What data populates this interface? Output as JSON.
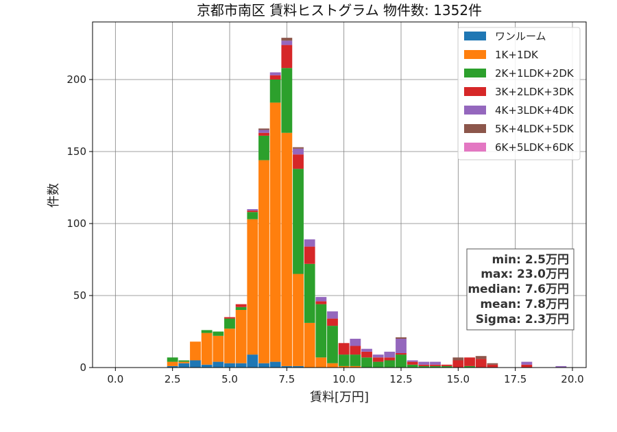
{
  "chart_data": {
    "type": "bar",
    "stacked": true,
    "title": "京都市南区 賃料ヒストグラム 物件数: 1352件",
    "xlabel": "賃料[万円]",
    "ylabel": "件数",
    "xlim": [
      -1.0,
      20.6
    ],
    "ylim": [
      0,
      240
    ],
    "xticks": [
      0.0,
      2.5,
      5.0,
      7.5,
      10.0,
      12.5,
      15.0,
      17.5,
      20.0
    ],
    "xtick_labels": [
      "0.0",
      "2.5",
      "5.0",
      "7.5",
      "10.0",
      "12.5",
      "15.0",
      "17.5",
      "20.0"
    ],
    "yticks": [
      0,
      50,
      100,
      150,
      200
    ],
    "ytick_labels": [
      "0",
      "50",
      "100",
      "150",
      "200"
    ],
    "grid": true,
    "legend_position": "top-right",
    "bin_width": 0.5,
    "x": [
      2.5,
      3.0,
      3.5,
      4.0,
      4.5,
      5.0,
      5.5,
      6.0,
      6.5,
      7.0,
      7.5,
      8.0,
      8.5,
      9.0,
      9.5,
      10.0,
      10.5,
      11.0,
      11.5,
      12.0,
      12.5,
      13.0,
      13.5,
      14.0,
      14.5,
      15.0,
      15.5,
      16.0,
      16.5,
      17.0,
      17.5,
      18.0,
      18.5,
      19.0,
      19.5
    ],
    "series": [
      {
        "name": "ワンルーム",
        "color": "#1f77b4",
        "values": [
          1,
          3,
          5,
          2,
          4,
          3,
          3,
          9,
          3,
          4,
          1,
          1,
          0,
          0,
          0,
          0,
          0,
          0,
          0,
          0,
          0,
          0,
          0,
          0,
          0,
          0,
          0,
          0,
          0,
          0,
          0,
          0,
          0,
          0,
          0
        ]
      },
      {
        "name": "1K+1DK",
        "color": "#ff7f0e",
        "values": [
          3,
          1,
          13,
          22,
          18,
          24,
          37,
          94,
          141,
          180,
          162,
          64,
          31,
          7,
          3,
          1,
          1,
          0,
          0,
          0,
          0,
          0,
          0,
          0,
          0,
          0,
          0,
          0,
          0,
          0,
          0,
          0,
          0,
          0,
          0
        ]
      },
      {
        "name": "2K+1LDK+2DK",
        "color": "#2ca02c",
        "values": [
          3,
          1,
          0,
          2,
          3,
          7,
          2,
          5,
          17,
          16,
          45,
          73,
          41,
          37,
          26,
          8,
          8,
          7,
          4,
          5,
          9,
          2,
          1,
          1,
          1,
          0,
          1,
          0,
          0,
          0,
          0,
          0,
          0,
          0,
          0
        ]
      },
      {
        "name": "3K+2LDK+3DK",
        "color": "#d62728",
        "values": [
          0,
          0,
          0,
          0,
          0,
          1,
          2,
          1,
          2,
          3,
          16,
          10,
          12,
          2,
          5,
          8,
          6,
          4,
          3,
          2,
          1,
          2,
          1,
          1,
          1,
          5,
          6,
          6,
          2,
          0,
          0,
          2,
          0,
          0,
          0
        ]
      },
      {
        "name": "4K+3LDK+4DK",
        "color": "#9467bd",
        "values": [
          0,
          0,
          0,
          0,
          0,
          0,
          0,
          1,
          2,
          2,
          3,
          4,
          5,
          3,
          5,
          0,
          5,
          2,
          2,
          4,
          10,
          1,
          2,
          2,
          0,
          0,
          0,
          0,
          0,
          0,
          0,
          2,
          0,
          0,
          1
        ]
      },
      {
        "name": "5K+4LDK+5DK",
        "color": "#8c564b",
        "values": [
          0,
          0,
          0,
          0,
          0,
          0,
          0,
          0,
          1,
          0,
          2,
          1,
          0,
          0,
          0,
          0,
          0,
          0,
          0,
          0,
          1,
          0,
          0,
          0,
          0,
          2,
          0,
          2,
          1,
          0,
          0,
          0,
          0,
          0,
          0
        ]
      },
      {
        "name": "6K+5LDK+6DK",
        "color": "#e377c2",
        "values": [
          0,
          0,
          0,
          0,
          0,
          0,
          0,
          0,
          0,
          0,
          0,
          0,
          0,
          0,
          0,
          0,
          0,
          0,
          0,
          0,
          0,
          0,
          0,
          0,
          0,
          0,
          0,
          0,
          0,
          0,
          0,
          0,
          0,
          0,
          0
        ]
      }
    ],
    "annotations": [
      "min: 2.5万円",
      "max: 23.0万円",
      "median: 7.6万円",
      "mean: 7.8万円",
      "Sigma: 2.3万円"
    ]
  }
}
